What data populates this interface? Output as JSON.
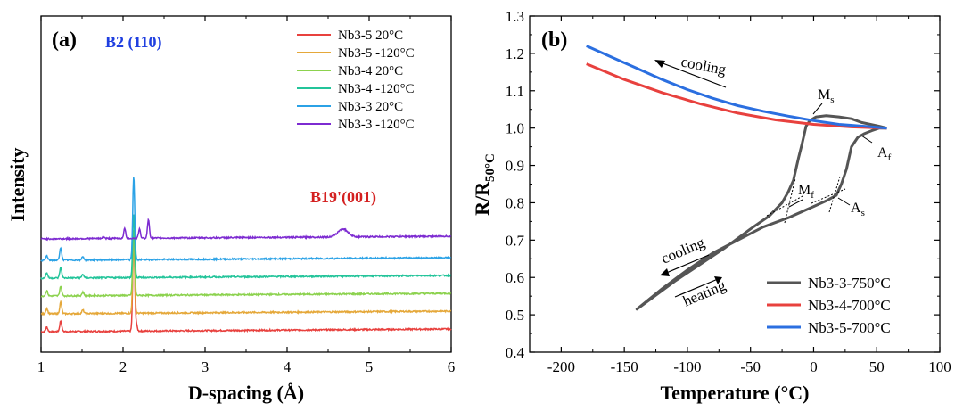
{
  "chart_data": [
    {
      "type": "line",
      "panel_label": "(a)",
      "xlabel": "D-spacing (Å)",
      "ylabel": "Intensity",
      "xlim": [
        1,
        6
      ],
      "xticks": [
        "1",
        "2",
        "3",
        "4",
        "5",
        "6"
      ],
      "yticks_labeled": false,
      "annotations": [
        {
          "text": "B2 (110)",
          "color": "#1f3fe0",
          "x": 2.12
        },
        {
          "text": "B19'(001)",
          "color": "#d42020",
          "x": 4.7
        }
      ],
      "series": [
        {
          "name": "Nb3-5 20°C",
          "color": "#e8413e",
          "baseline": 0.0,
          "peaks": [
            [
              1.07,
              0.25
            ],
            [
              1.24,
              0.6
            ],
            [
              2.13,
              5.3
            ],
            [
              2.16,
              0.4
            ]
          ]
        },
        {
          "name": "Nb3-5 -120°C",
          "color": "#e5a83a",
          "baseline": 1.0,
          "peaks": [
            [
              1.07,
              0.3
            ],
            [
              1.24,
              0.65
            ],
            [
              1.51,
              0.2
            ],
            [
              2.13,
              4.3
            ]
          ]
        },
        {
          "name": "Nb3-4 20°C",
          "color": "#8cd24e",
          "baseline": 2.0,
          "peaks": [
            [
              1.07,
              0.3
            ],
            [
              1.24,
              0.55
            ],
            [
              1.51,
              0.2
            ],
            [
              2.13,
              3.7
            ]
          ]
        },
        {
          "name": "Nb3-4 -120°C",
          "color": "#23c49a",
          "baseline": 3.0,
          "peaks": [
            [
              1.07,
              0.3
            ],
            [
              1.24,
              0.6
            ],
            [
              1.51,
              0.2
            ],
            [
              2.13,
              3.6
            ]
          ]
        },
        {
          "name": "Nb3-3 20°C",
          "color": "#2ba2e6",
          "baseline": 4.0,
          "peaks": [
            [
              1.07,
              0.25
            ],
            [
              1.24,
              0.7
            ],
            [
              1.51,
              0.2
            ],
            [
              2.13,
              4.7
            ]
          ]
        },
        {
          "name": "Nb3-3 -120°C",
          "color": "#7d2bd1",
          "baseline": 5.2,
          "peaks": [
            [
              1.76,
              0.1
            ],
            [
              2.02,
              0.55
            ],
            [
              2.2,
              0.5
            ],
            [
              2.31,
              1.05
            ],
            [
              4.68,
              0.45
            ]
          ]
        }
      ]
    },
    {
      "type": "line",
      "panel_label": "(b)",
      "xlabel": "Temperature (°C)",
      "ylabel": "R/R",
      "ylabel_sub": "50°C",
      "xlim": [
        -225,
        100
      ],
      "ylim": [
        0.4,
        1.3
      ],
      "xticks": [
        -200,
        -150,
        -100,
        -50,
        0,
        50,
        100
      ],
      "yticks": [
        "0.4",
        "0.5",
        "0.6",
        "0.7",
        "0.8",
        "0.9",
        "1.0",
        "1.1",
        "1.2",
        "1.3"
      ],
      "annotations": {
        "cooling_top": "cooling",
        "cooling_bottom": "cooling",
        "heating": "heating",
        "Ms": {
          "main": "M",
          "sub": "s"
        },
        "Mf": {
          "main": "M",
          "sub": "f"
        },
        "As": {
          "main": "A",
          "sub": "s"
        },
        "Af": {
          "main": "A",
          "sub": "f"
        }
      },
      "series": [
        {
          "name": "Nb3-3-750°C",
          "color": "#555555",
          "x": [
            58,
            52,
            45,
            38,
            30,
            20,
            10,
            2,
            -3,
            -6,
            -9,
            -12,
            -16,
            -20,
            -25,
            -35,
            -50,
            -70,
            -90,
            -110,
            -140,
            -120,
            -100,
            -80,
            -60,
            -40,
            -20,
            0,
            10,
            18,
            22,
            26,
            30,
            35,
            40,
            46,
            52,
            58
          ],
          "y": [
            1.0,
            1.005,
            1.01,
            1.015,
            1.025,
            1.03,
            1.033,
            1.03,
            1.02,
            1.005,
            0.96,
            0.92,
            0.86,
            0.83,
            0.8,
            0.765,
            0.73,
            0.68,
            0.635,
            0.59,
            0.515,
            0.57,
            0.62,
            0.665,
            0.7,
            0.735,
            0.76,
            0.79,
            0.805,
            0.82,
            0.85,
            0.89,
            0.95,
            0.975,
            0.985,
            0.993,
            1.0,
            1.0
          ]
        },
        {
          "name": "Nb3-4-700°C",
          "color": "#e8413e",
          "x": [
            -180,
            -150,
            -120,
            -90,
            -60,
            -30,
            0,
            30,
            58
          ],
          "y": [
            1.172,
            1.13,
            1.095,
            1.065,
            1.04,
            1.022,
            1.01,
            1.003,
            1.0
          ]
        },
        {
          "name": "Nb3-5-700°C",
          "color": "#2b6fe0",
          "x": [
            -180,
            -160,
            -140,
            -120,
            -100,
            -80,
            -60,
            -40,
            -20,
            0,
            20,
            40,
            58
          ],
          "y": [
            1.22,
            1.19,
            1.16,
            1.13,
            1.103,
            1.08,
            1.06,
            1.045,
            1.032,
            1.02,
            1.01,
            1.005,
            1.0
          ]
        }
      ]
    }
  ]
}
